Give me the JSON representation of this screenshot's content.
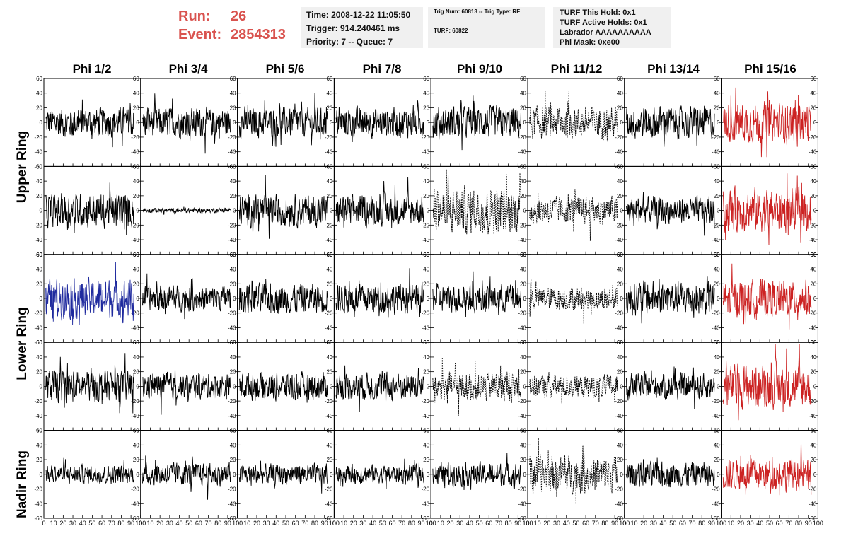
{
  "header": {
    "run_label": "Run:",
    "run_value": "26",
    "event_label": "Event:",
    "event_value": "2854313"
  },
  "info1": {
    "time": "Time: 2008-12-22 11:05:50",
    "trigger": "Trigger: 914.240461 ms",
    "priority": "Priority: 7 -- Queue: 7"
  },
  "info2": {
    "trig": "Trig Num: 60813 -- Trig Type: RF",
    "turf": "TURF: 60822"
  },
  "info3": {
    "hold": "TURF This Hold: 0x1",
    "active": "TURF Active Holds: 0x1",
    "labrador": "Labrador AAAAAAAAAA",
    "phimask": "Phi Mask: 0xe00"
  },
  "columns": [
    "Phi 1/2",
    "Phi 3/4",
    "Phi 5/6",
    "Phi 7/8",
    "Phi 9/10",
    "Phi 11/12",
    "Phi 13/14",
    "Phi 15/16"
  ],
  "rows": [
    "Upper Ring",
    "Lower Ring",
    "Nadir Ring"
  ],
  "colors": {
    "trace": "#000000",
    "red": "#cc2222",
    "blue": "#1f2a9e"
  },
  "chart_data": {
    "type": "line",
    "title": "",
    "xlim": [
      0,
      100
    ],
    "ylim": [
      -60,
      60
    ],
    "x_ticks": [
      0,
      10,
      20,
      30,
      40,
      50,
      60,
      70,
      80,
      90,
      100
    ],
    "y_ticks": [
      -60,
      -40,
      -20,
      0,
      20,
      40,
      60
    ],
    "x_tick_labels": [
      "0",
      "10",
      "20",
      "30",
      "40",
      "50",
      "60",
      "70",
      "80",
      "90",
      "100"
    ],
    "y_tick_labels": [
      "-60",
      "-40",
      "-20",
      "0",
      "20",
      "40",
      "60"
    ],
    "grid": false,
    "panels": [
      [
        {
          "color": "black",
          "dashed": false,
          "amp": 13
        },
        {
          "color": "black",
          "dashed": false,
          "amp": 13
        },
        {
          "color": "black",
          "dashed": false,
          "amp": 13
        },
        {
          "color": "black",
          "dashed": false,
          "amp": 13
        },
        {
          "color": "black",
          "dashed": false,
          "amp": 14
        },
        {
          "color": "black",
          "dashed": true,
          "amp": 14
        },
        {
          "color": "black",
          "dashed": false,
          "amp": 14
        },
        {
          "color": "red",
          "dashed": false,
          "amp": 17
        }
      ],
      [
        {
          "color": "black",
          "dashed": false,
          "amp": 15
        },
        {
          "color": "black",
          "dashed": false,
          "amp": 2
        },
        {
          "color": "black",
          "dashed": false,
          "amp": 14
        },
        {
          "color": "black",
          "dashed": false,
          "amp": 13
        },
        {
          "color": "black",
          "dashed": true,
          "amp": 20
        },
        {
          "color": "black",
          "dashed": true,
          "amp": 12
        },
        {
          "color": "black",
          "dashed": false,
          "amp": 12
        },
        {
          "color": "red",
          "dashed": false,
          "amp": 19
        }
      ],
      [
        {
          "color": "blue",
          "dashed": false,
          "amp": 17
        },
        {
          "color": "black",
          "dashed": false,
          "amp": 11
        },
        {
          "color": "black",
          "dashed": false,
          "amp": 13
        },
        {
          "color": "black",
          "dashed": false,
          "amp": 13
        },
        {
          "color": "black",
          "dashed": false,
          "amp": 12
        },
        {
          "color": "black",
          "dashed": true,
          "amp": 10
        },
        {
          "color": "black",
          "dashed": false,
          "amp": 15
        },
        {
          "color": "red",
          "dashed": false,
          "amp": 16
        }
      ],
      [
        {
          "color": "black",
          "dashed": false,
          "amp": 14
        },
        {
          "color": "black",
          "dashed": false,
          "amp": 11
        },
        {
          "color": "black",
          "dashed": false,
          "amp": 12
        },
        {
          "color": "black",
          "dashed": false,
          "amp": 12
        },
        {
          "color": "black",
          "dashed": true,
          "amp": 13
        },
        {
          "color": "black",
          "dashed": true,
          "amp": 10
        },
        {
          "color": "black",
          "dashed": false,
          "amp": 11
        },
        {
          "color": "red",
          "dashed": false,
          "amp": 19
        }
      ],
      [
        {
          "color": "black",
          "dashed": false,
          "amp": 8
        },
        {
          "color": "black",
          "dashed": false,
          "amp": 10
        },
        {
          "color": "black",
          "dashed": false,
          "amp": 9
        },
        {
          "color": "black",
          "dashed": false,
          "amp": 8
        },
        {
          "color": "black",
          "dashed": false,
          "amp": 10
        },
        {
          "color": "black",
          "dashed": true,
          "amp": 16
        },
        {
          "color": "black",
          "dashed": false,
          "amp": 11
        },
        {
          "color": "red",
          "dashed": false,
          "amp": 14
        }
      ]
    ]
  }
}
